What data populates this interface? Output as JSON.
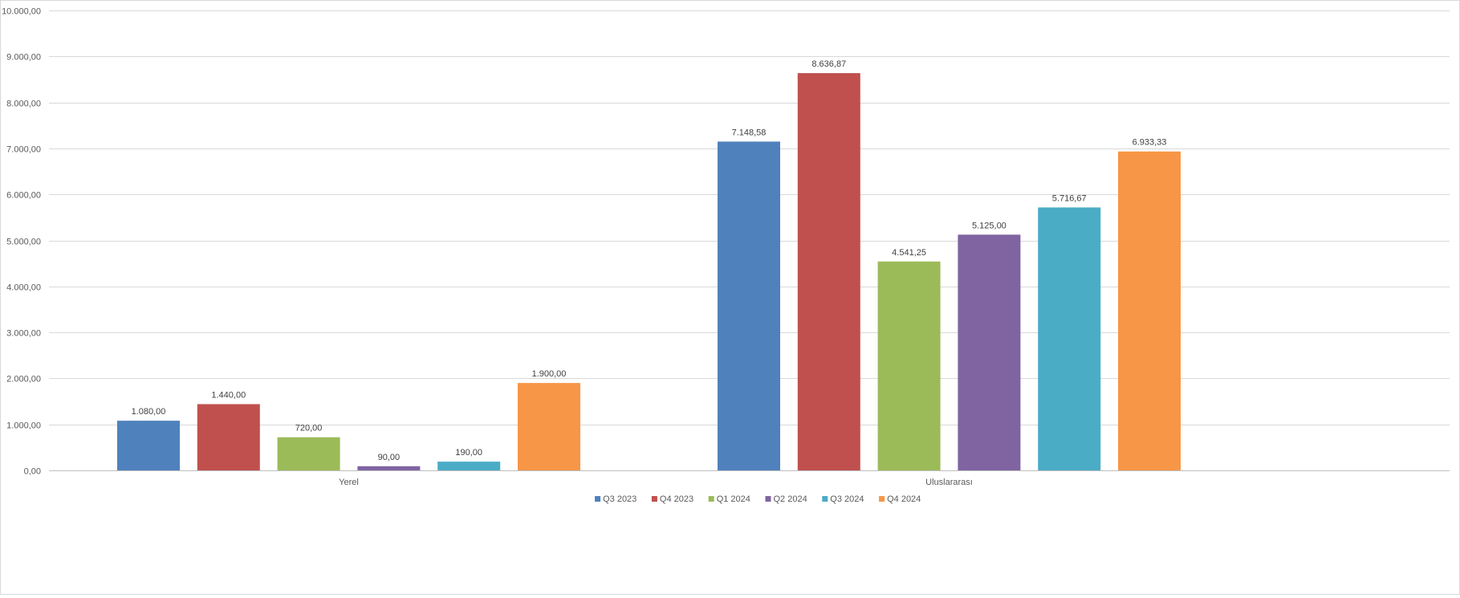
{
  "chart_data": {
    "type": "bar",
    "categories": [
      "Yerel",
      "Uluslararası"
    ],
    "series": [
      {
        "name": "Q3 2023",
        "color": "#4F81BD",
        "values": [
          1080.0,
          7148.58
        ],
        "labels": [
          "1.080,00",
          "7.148,58"
        ]
      },
      {
        "name": "Q4 2023",
        "color": "#C0504D",
        "values": [
          1440.0,
          8636.87
        ],
        "labels": [
          "1.440,00",
          "8.636,87"
        ]
      },
      {
        "name": "Q1 2024",
        "color": "#9BBB59",
        "values": [
          720.0,
          4541.25
        ],
        "labels": [
          "720,00",
          "4.541,25"
        ]
      },
      {
        "name": "Q2 2024",
        "color": "#8064A2",
        "values": [
          90.0,
          5125.0
        ],
        "labels": [
          "90,00",
          "5.125,00"
        ]
      },
      {
        "name": "Q3 2024",
        "color": "#4BACC6",
        "values": [
          190.0,
          5716.67
        ],
        "labels": [
          "190,00",
          "5.716,67"
        ]
      },
      {
        "name": "Q4 2024",
        "color": "#F79646",
        "values": [
          1900.0,
          6933.33
        ],
        "labels": [
          "1.900,00",
          "6.933,33"
        ]
      }
    ],
    "ylim": [
      0,
      10000
    ],
    "yticks": [
      0,
      1000,
      2000,
      3000,
      4000,
      5000,
      6000,
      7000,
      8000,
      9000,
      10000
    ],
    "ytick_labels": [
      "0,00",
      "1.000,00",
      "2.000,00",
      "3.000,00",
      "4.000,00",
      "5.000,00",
      "6.000,00",
      "7.000,00",
      "8.000,00",
      "9.000,00",
      "10.000,00"
    ],
    "grid": true,
    "legend_position": "bottom",
    "title": "",
    "xlabel": "",
    "ylabel": ""
  }
}
